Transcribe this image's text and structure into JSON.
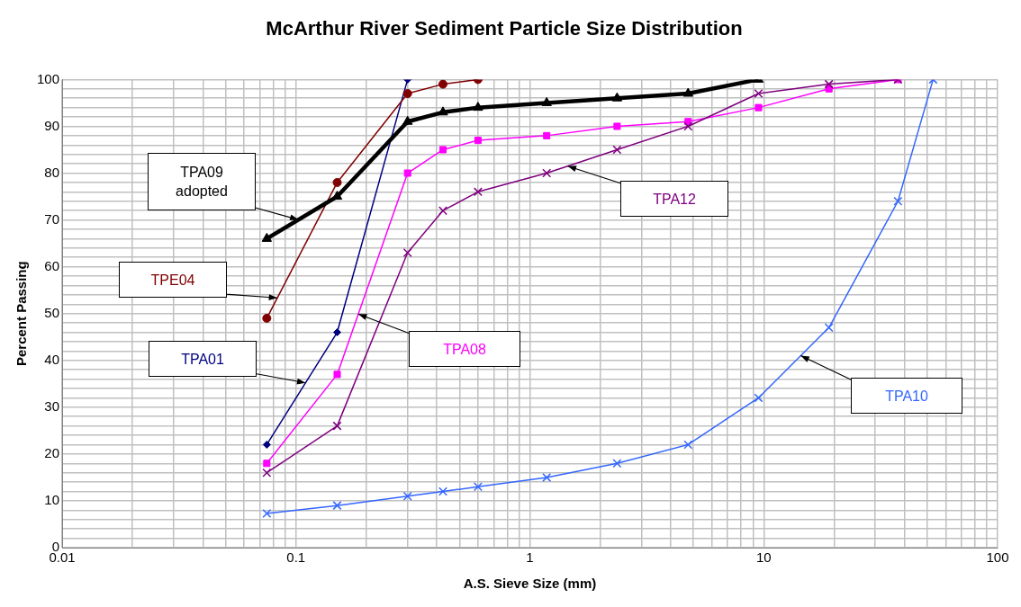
{
  "chart_data": {
    "type": "line",
    "title": "McArthur River Sediment Particle Size Distribution",
    "xlabel": "A.S. Sieve Size (mm)",
    "ylabel": "Percent Passing",
    "log": "x",
    "grid": true,
    "line_style": "solid",
    "xlim": [
      0.01,
      100
    ],
    "ylim": [
      0,
      100
    ],
    "xticks": [
      0.01,
      {
        "value": 0.02,
        "label": null
      },
      {
        "value": 0.03,
        "label": null
      },
      {
        "value": 0.04,
        "label": null
      },
      {
        "value": 0.05,
        "label": null
      },
      {
        "value": 0.06,
        "label": null
      },
      {
        "value": 0.07,
        "label": null
      },
      {
        "value": 0.08,
        "label": null
      },
      {
        "value": 0.09,
        "label": null
      },
      0.1,
      {
        "value": 0.2,
        "label": null
      },
      {
        "value": 0.3,
        "label": null
      },
      {
        "value": 0.4,
        "label": null
      },
      {
        "value": 0.5,
        "label": null
      },
      {
        "value": 0.6,
        "label": null
      },
      {
        "value": 0.7,
        "label": null
      },
      {
        "value": 0.8,
        "label": null
      },
      {
        "value": 0.9,
        "label": null
      },
      1,
      {
        "value": 2,
        "label": null
      },
      {
        "value": 3,
        "label": null
      },
      {
        "value": 4,
        "label": null
      },
      {
        "value": 5,
        "label": null
      },
      {
        "value": 6,
        "label": null
      },
      {
        "value": 7,
        "label": null
      },
      {
        "value": 8,
        "label": null
      },
      {
        "value": 9,
        "label": null
      },
      10,
      {
        "value": 20,
        "label": null
      },
      {
        "value": 30,
        "label": null
      },
      {
        "value": 40,
        "label": null
      },
      {
        "value": 50,
        "label": null
      },
      {
        "value": 60,
        "label": null
      },
      {
        "value": 70,
        "label": null
      },
      {
        "value": 80,
        "label": null
      },
      {
        "value": 90,
        "label": null
      },
      100
    ],
    "yticks": [
      0,
      {
        "value": 2,
        "label": null
      },
      {
        "value": 4,
        "label": null
      },
      {
        "value": 6,
        "label": null
      },
      {
        "value": 8,
        "label": null
      },
      10,
      {
        "value": 12,
        "label": null
      },
      {
        "value": 14,
        "label": null
      },
      {
        "value": 16,
        "label": null
      },
      {
        "value": 18,
        "label": null
      },
      20,
      {
        "value": 22,
        "label": null
      },
      {
        "value": 24,
        "label": null
      },
      {
        "value": 26,
        "label": null
      },
      {
        "value": 28,
        "label": null
      },
      30,
      {
        "value": 32,
        "label": null
      },
      {
        "value": 34,
        "label": null
      },
      {
        "value": 36,
        "label": null
      },
      {
        "value": 38,
        "label": null
      },
      40,
      {
        "value": 42,
        "label": null
      },
      {
        "value": 44,
        "label": null
      },
      {
        "value": 46,
        "label": null
      },
      {
        "value": 48,
        "label": null
      },
      50,
      {
        "value": 52,
        "label": null
      },
      {
        "value": 54,
        "label": null
      },
      {
        "value": 56,
        "label": null
      },
      {
        "value": 58,
        "label": null
      },
      60,
      {
        "value": 62,
        "label": null
      },
      {
        "value": 64,
        "label": null
      },
      {
        "value": 66,
        "label": null
      },
      {
        "value": 68,
        "label": null
      },
      70,
      {
        "value": 72,
        "label": null
      },
      {
        "value": 74,
        "label": null
      },
      {
        "value": 76,
        "label": null
      },
      {
        "value": 78,
        "label": null
      },
      80,
      {
        "value": 82,
        "label": null
      },
      {
        "value": 84,
        "label": null
      },
      {
        "value": 86,
        "label": null
      },
      {
        "value": 88,
        "label": null
      },
      90,
      {
        "value": 92,
        "label": null
      },
      {
        "value": 94,
        "label": null
      },
      {
        "value": 96,
        "label": null
      },
      {
        "value": 98,
        "label": null
      },
      100
    ],
    "series": [
      {
        "name": "TPA01",
        "color": "#000080",
        "marker": "diamond",
        "x": [
          0.075,
          0.15,
          0.3
        ],
        "values": [
          22,
          46,
          100
        ]
      },
      {
        "name": "TPE04",
        "color": "#800000",
        "marker": "circle",
        "x": [
          0.075,
          0.15,
          0.3,
          0.425,
          0.6
        ],
        "values": [
          49,
          78,
          97,
          99,
          100
        ]
      },
      {
        "name": "TPA09 adopted",
        "color": "#000000",
        "marker": "triangle",
        "x": [
          0.075,
          0.15,
          0.3,
          0.425,
          0.6,
          1.18,
          2.36,
          4.75,
          9.5
        ],
        "values": [
          66,
          75,
          91,
          93,
          94,
          95,
          96,
          97,
          100
        ]
      },
      {
        "name": "TPA08",
        "color": "#ff00ff",
        "marker": "square",
        "x": [
          0.075,
          0.15,
          0.3,
          0.425,
          0.6,
          1.18,
          2.36,
          4.75,
          9.5,
          19,
          37.5
        ],
        "values": [
          18,
          37,
          80,
          85,
          87,
          88,
          90,
          91,
          94,
          98,
          100
        ]
      },
      {
        "name": "TPA12",
        "color": "#800080",
        "marker": "cross",
        "x": [
          0.075,
          0.15,
          0.3,
          0.425,
          0.6,
          1.18,
          2.36,
          4.75,
          9.5,
          19,
          37.5
        ],
        "values": [
          16,
          26,
          63,
          72,
          76,
          80,
          85,
          90,
          97,
          99,
          100
        ]
      },
      {
        "name": "TPA10",
        "color": "#3366ff",
        "marker": "cross",
        "x": [
          0.075,
          0.15,
          0.3,
          0.425,
          0.6,
          1.18,
          2.36,
          4.75,
          9.5,
          19,
          37.5,
          53
        ],
        "values": [
          7.3,
          9,
          11,
          12,
          13,
          15,
          18,
          22,
          32,
          47,
          74,
          100
        ]
      }
    ]
  }
}
